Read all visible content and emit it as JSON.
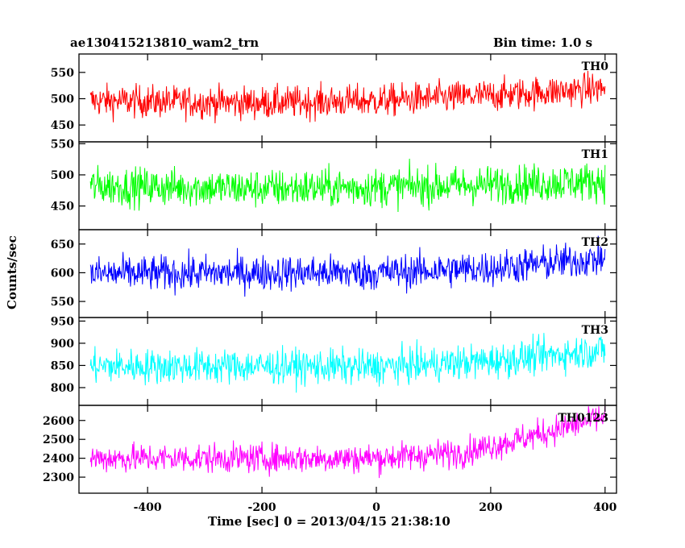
{
  "header": {
    "title": "ae130415213810_wam2_trn",
    "bin_time": "Bin time: 1.0 s"
  },
  "axes": {
    "xlabel": "Time [sec] 0 = 2013/04/15 21:38:10",
    "ylabel": "Counts/sec"
  },
  "chart_data": {
    "type": "line",
    "title": "ae130415213810_wam2_trn",
    "xlabel": "Time [sec] 0 = 2013/04/15 21:38:10",
    "ylabel": "Counts/sec",
    "xlim": [
      -520,
      420
    ],
    "x_range": [
      -500,
      400
    ],
    "x_ticks": [
      -400,
      -200,
      0,
      200,
      400
    ],
    "bin_time_s": 1.0,
    "panels": [
      {
        "name": "TH0",
        "color": "#ff0000",
        "ylim": [
          418,
          585
        ],
        "y_ticks": [
          450,
          500,
          550
        ],
        "trend": [
          [
            -500,
            496
          ],
          [
            -200,
            492
          ],
          [
            0,
            496
          ],
          [
            200,
            506
          ],
          [
            400,
            520
          ]
        ],
        "noise_amplitude": 22
      },
      {
        "name": "TH1",
        "color": "#00ff00",
        "ylim": [
          412,
          553
        ],
        "y_ticks": [
          450,
          500,
          550
        ],
        "trend": [
          [
            -500,
            482
          ],
          [
            -200,
            478
          ],
          [
            0,
            480
          ],
          [
            200,
            484
          ],
          [
            400,
            490
          ]
        ],
        "noise_amplitude": 22
      },
      {
        "name": "TH2",
        "color": "#0000ff",
        "ylim": [
          522,
          675
        ],
        "y_ticks": [
          550,
          600,
          650
        ],
        "trend": [
          [
            -500,
            598
          ],
          [
            -200,
            600
          ],
          [
            0,
            600
          ],
          [
            200,
            608
          ],
          [
            400,
            625
          ]
        ],
        "noise_amplitude": 22
      },
      {
        "name": "TH3",
        "color": "#00ffff",
        "ylim": [
          760,
          958
        ],
        "y_ticks": [
          800,
          850,
          900,
          950
        ],
        "trend": [
          [
            -500,
            848
          ],
          [
            -200,
            848
          ],
          [
            0,
            846
          ],
          [
            200,
            860
          ],
          [
            400,
            885
          ]
        ],
        "noise_amplitude": 28
      },
      {
        "name": "TH0123",
        "color": "#ff00ff",
        "ylim": [
          2215,
          2680
        ],
        "y_ticks": [
          2300,
          2400,
          2500,
          2600
        ],
        "trend": [
          [
            -500,
            2400
          ],
          [
            -200,
            2400
          ],
          [
            0,
            2400
          ],
          [
            150,
            2430
          ],
          [
            250,
            2500
          ],
          [
            400,
            2620
          ]
        ],
        "noise_amplitude": 55
      }
    ]
  }
}
